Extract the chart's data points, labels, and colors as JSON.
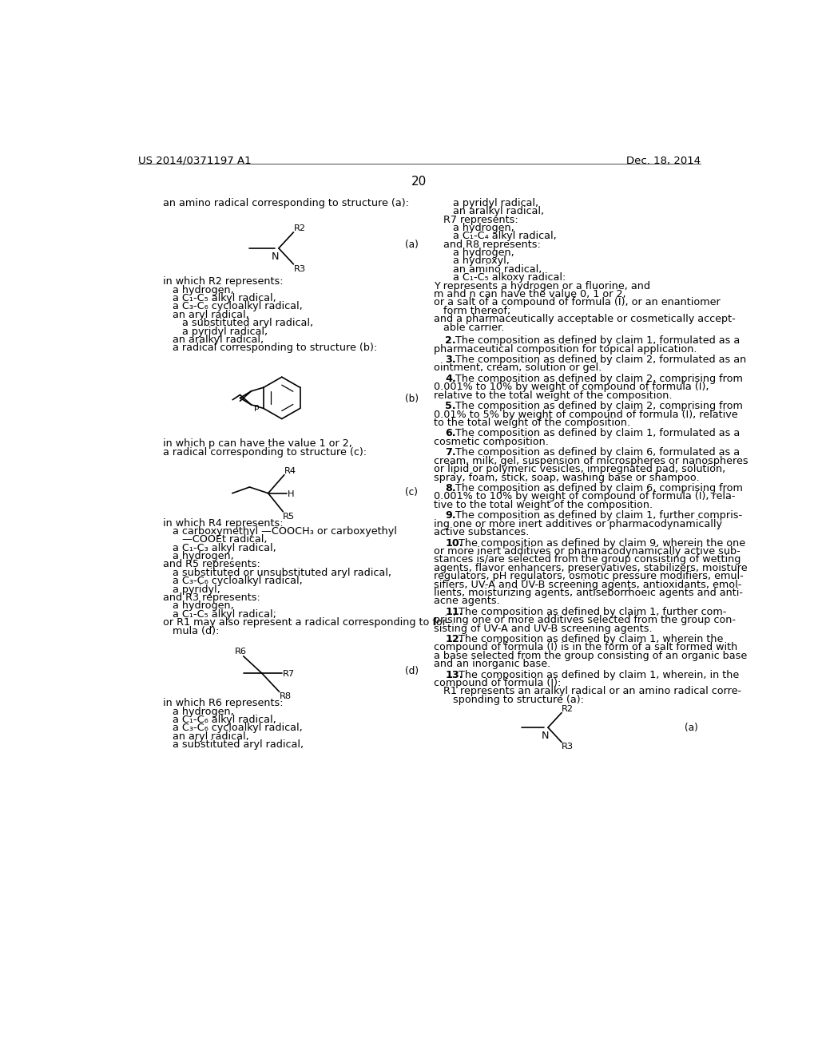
{
  "background_color": "#ffffff",
  "header_left": "US 2014/0371197 A1",
  "header_right": "Dec. 18, 2014",
  "page_number": "20",
  "left_column": {
    "intro_text": "an amino radical corresponding to structure (a):",
    "text_after_a": [
      "in which R2 represents:",
      "   a hydrogen,",
      "   a C₁-C₅ alkyl radical,",
      "   a C₃-C₆ cycloalkyl radical,",
      "   an aryl radical,",
      "      a substituted aryl radical,",
      "      a pyridyl radical,",
      "   an aralkyl radical,",
      "   a radical corresponding to structure (b):"
    ],
    "text_after_b": [
      "in which p can have the value 1 or 2,",
      "a radical corresponding to structure (c):"
    ],
    "text_after_c": [
      "in which R4 represents:",
      "   a carboxymethyl —COOCH₃ or carboxyethyl",
      "      —COOEt radical,",
      "   a C₁-C₃ alkyl radical,",
      "   a hydrogen,",
      "and R5 represents:",
      "   a substituted or unsubstituted aryl radical,",
      "   a C₃-C₆ cycloalkyl radical,",
      "   a pyridyl,",
      "and R3 represents:",
      "   a hydrogen,",
      "   a C₁-C₅ alkyl radical;",
      "or R1 may also represent a radical corresponding to for-",
      "   mula (d):"
    ],
    "text_after_d": [
      "in which R6 represents:",
      "   a hydrogen,",
      "   a C₁-C₆ alkyl radical,",
      "   a C₃-C₆ cycloalkyl radical,",
      "   an aryl radical,",
      "   a substituted aryl radical,"
    ]
  },
  "right_column": {
    "text_lines": [
      "      a pyridyl radical,",
      "      an aralkyl radical,",
      "   R7 represents:",
      "      a hydrogen,",
      "      a C₁-C₄ alkyl radical,",
      "   and R8 represents:",
      "      a hydrogen,",
      "      a hydroxyl,",
      "      an amino radical,",
      "      a C₁-C₅ alkoxy radical:",
      "Y represents a hydrogen or a fluorine, and",
      "m and n can have the value 0, 1 or 2,",
      "or a salt of a compound of formula (I), or an enantiomer",
      "   form thereof;",
      "and a pharmaceutically acceptable or cosmetically accept-",
      "   able carrier."
    ],
    "claims": [
      {
        "num": "2",
        "text": ". The composition as defined by claim ¬1¬, formulated as a pharmaceutical composition for topical application."
      },
      {
        "num": "3",
        "text": ". The composition as defined by claim ¬2¬, formulated as an ointment, cream, solution or gel."
      },
      {
        "num": "4",
        "text": ". The composition as defined by claim ¬2¬, comprising from 0.001% to 10% by weight of compound of formula (I), relative to the total weight of the composition."
      },
      {
        "num": "5",
        "text": ". The composition as defined by claim ¬2¬, comprising from 0.01% to 5% by weight of compound of formula (I), relative to the total weight of the composition."
      },
      {
        "num": "6",
        "text": ". The composition as defined by claim ¬1¬, formulated as a cosmetic composition."
      },
      {
        "num": "7",
        "text": ". The composition as defined by claim ¬6¬, formulated as a cream, milk, gel, suspension of microspheres or nanospheres or lipid or polymeric vesicles, impregnated pad, solution, spray, foam, stick, soap, washing base or shampoo."
      },
      {
        "num": "8",
        "text": ". The composition as defined by claim ¬6¬, comprising from 0.001% to 10% by weight of compound of formula (I), rela- tive to the total weight of the composition."
      },
      {
        "num": "9",
        "text": ". The composition as defined by claim ¬1¬, further compris- ing one or more inert additives or pharmacodynamically active substances."
      },
      {
        "num": "10",
        "text": ". The composition as defined by claim ¬9¬, wherein the one or more inert additives or pharmacodynamically active sub- stances is/are selected from the group consisting of wetting agents, flavor enhancers, preservatives, stabilizers, moisture regulators, pH regulators, osmotic pressure modifiers, emul- sifiers, UV-A and UV-B screening agents, antioxidants, emol- lients, moisturizing agents, antiseborrhoeic agents and anti- acne agents."
      },
      {
        "num": "11",
        "text": ". The composition as defined by claim ¬1¬, further com- prising one or more additives selected from the group con- sisting of UV-A and UV-B screening agents."
      },
      {
        "num": "12",
        "text": ". The composition as defined by claim ¬1¬, wherein the compound of formula (I) is in the form of a salt formed with a base selected from the group consisting of an organic base and an inorganic base."
      },
      {
        "num": "13",
        "text": ". The composition as defined by claim ¬1¬, wherein, in the compound of formula (I):\n   R1 represents an aralkyl radical or an amino radical corre-\n      sponding to structure (a):"
      }
    ]
  }
}
